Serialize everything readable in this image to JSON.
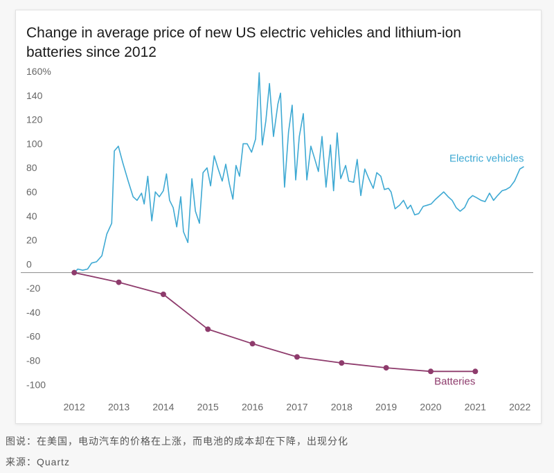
{
  "chart_data": {
    "type": "line",
    "title": "Change in average price of new US electric vehicles and lithium-ion batteries since 2012",
    "xlim": [
      2010.8,
      2022.3
    ],
    "xticks": [
      2012,
      2013,
      2014,
      2015,
      2016,
      2017,
      2018,
      2019,
      2020,
      2021,
      2022
    ],
    "ylim": [
      -110,
      170
    ],
    "yticks": [
      {
        "value": 160,
        "label": "160%"
      },
      140,
      120,
      100,
      80,
      60,
      40,
      20,
      0,
      -20,
      -40,
      -60,
      -80,
      -100
    ],
    "grid": false,
    "zero_line": true,
    "series": [
      {
        "name": "Electric vehicles",
        "color": "#3ea9d3",
        "x": [
          2012.0,
          2012.08,
          2012.19,
          2012.3,
          2012.39,
          2012.5,
          2012.62,
          2012.73,
          2012.84,
          2012.9,
          2012.99,
          2013.09,
          2013.21,
          2013.32,
          2013.41,
          2013.51,
          2013.57,
          2013.65,
          2013.74,
          2013.82,
          2013.91,
          2014.0,
          2014.07,
          2014.14,
          2014.22,
          2014.3,
          2014.39,
          2014.45,
          2014.55,
          2014.64,
          2014.72,
          2014.81,
          2014.89,
          2014.98,
          2015.06,
          2015.14,
          2015.23,
          2015.32,
          2015.4,
          2015.48,
          2015.56,
          2015.63,
          2015.71,
          2015.79,
          2015.88,
          2015.98,
          2016.07,
          2016.15,
          2016.22,
          2016.3,
          2016.38,
          2016.47,
          2016.57,
          2016.63,
          2016.72,
          2016.81,
          2016.89,
          2016.97,
          2017.05,
          2017.14,
          2017.22,
          2017.31,
          2017.4,
          2017.48,
          2017.56,
          2017.65,
          2017.75,
          2017.82,
          2017.9,
          2017.98,
          2018.09,
          2018.16,
          2018.27,
          2018.35,
          2018.43,
          2018.52,
          2018.61,
          2018.71,
          2018.79,
          2018.88,
          2018.96,
          2019.05,
          2019.11,
          2019.2,
          2019.3,
          2019.39,
          2019.48,
          2019.55,
          2019.64,
          2019.73,
          2019.83,
          2019.92,
          2020.01,
          2020.11,
          2020.2,
          2020.29,
          2020.39,
          2020.48,
          2020.57,
          2020.66,
          2020.76,
          2020.85,
          2020.94,
          2021.04,
          2021.13,
          2021.22,
          2021.32,
          2021.41,
          2021.5,
          2021.6,
          2021.69,
          2021.78,
          2021.88,
          2022.0,
          2022.09
        ],
        "values": [
          0,
          3,
          2,
          3,
          8,
          9,
          14,
          32,
          41,
          101,
          105,
          91,
          76,
          63,
          60,
          66,
          57,
          80,
          43,
          67,
          63,
          68,
          82,
          60,
          54,
          38,
          63,
          34,
          25,
          78,
          51,
          41,
          83,
          87,
          72,
          97,
          86,
          76,
          90,
          74,
          61,
          89,
          80,
          107,
          107,
          100,
          111,
          166,
          106,
          126,
          157,
          113,
          140,
          149,
          71,
          117,
          139,
          77,
          113,
          132,
          77,
          105,
          94,
          84,
          113,
          71,
          106,
          68,
          116,
          78,
          89,
          76,
          75,
          94,
          64,
          86,
          78,
          70,
          83,
          80,
          69,
          70,
          67,
          53,
          56,
          60,
          53,
          56,
          48,
          49,
          55,
          56,
          57,
          61,
          64,
          67,
          63,
          60,
          54,
          51,
          54,
          61,
          64,
          62,
          60,
          59,
          66,
          60,
          64,
          68,
          69,
          71,
          76,
          86,
          88
        ]
      },
      {
        "name": "Batteries",
        "color": "#8e3b6c",
        "x": [
          2012,
          2013,
          2014,
          2015,
          2016,
          2017,
          2018,
          2019,
          2020,
          2021
        ],
        "values": [
          0,
          -8,
          -18,
          -47,
          -59,
          -70,
          -75,
          -79,
          -82,
          -82
        ]
      }
    ]
  },
  "caption": "图说：在美国，电动汽车的价格在上涨，而电池的成本却在下降，出现分化",
  "source": "来源：Quartz"
}
